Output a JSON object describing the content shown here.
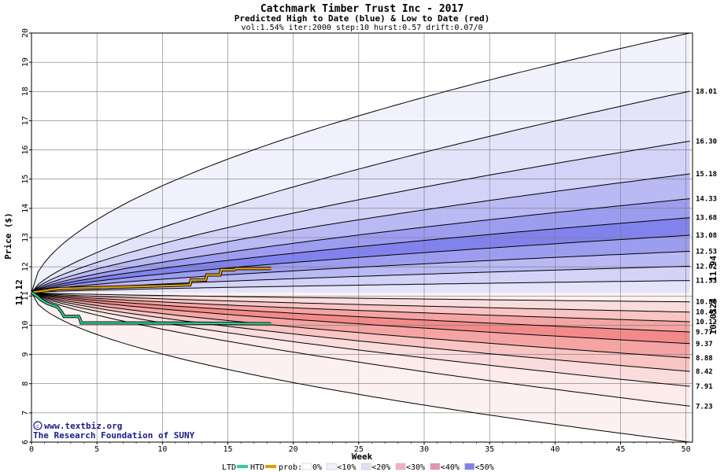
{
  "chart_data": {
    "type": "area",
    "title": "Catchmark Timber Trust Inc - 2017",
    "subtitle": "Predicted High to Date (blue) &  Low to Date (red)",
    "params": "vol:1.54% iter:2000 step:10 hurst:0.57 drift:0.07/0",
    "xlabel": "Week",
    "ylabel": "Price ($)",
    "xlim": [
      0,
      50.5
    ],
    "ylim": [
      6,
      20
    ],
    "x_ticks": [
      0,
      5,
      10,
      15,
      20,
      25,
      30,
      35,
      40,
      45,
      50
    ],
    "y_ticks": [
      6,
      7,
      8,
      9,
      10,
      11,
      12,
      13,
      14,
      15,
      16,
      17,
      18,
      19,
      20
    ],
    "grid": true,
    "start_price": 11.12,
    "start_label": "11.12",
    "high_bands": [
      {
        "end": 20.0,
        "shape": 0.55,
        "fill": "#f1f1fd"
      },
      {
        "end": 18.01,
        "shape": 0.7,
        "label": "18.01",
        "fill": "#e3e3fa"
      },
      {
        "end": 16.3,
        "shape": 0.7,
        "label": "16.30",
        "fill": "#d3d3f8"
      },
      {
        "end": 15.18,
        "shape": 0.7,
        "label": "15.18",
        "fill": "#b9b9f4"
      },
      {
        "end": 14.33,
        "shape": 0.7,
        "label": "14.33",
        "fill": "#9d9df0"
      },
      {
        "end": 13.68,
        "shape": 0.7,
        "label": "13.68",
        "fill": "#8282ec"
      },
      {
        "end": 13.08,
        "shape": 0.7,
        "label": "13.08",
        "fill": "#9d9df0"
      },
      {
        "end": 12.53,
        "shape": 0.7,
        "label": "12.53",
        "fill": "#b9b9f4"
      },
      {
        "end": 12.02,
        "shape": 0.7,
        "label": "12.02",
        "fill": "#d3d3f8"
      },
      {
        "end": 11.53,
        "shape": 0.7,
        "label": "11.53",
        "fill": "#e3e3fa"
      },
      {
        "end": 11.12,
        "shape": 0.7,
        "fill": "#f1f1fd"
      }
    ],
    "low_bands": [
      {
        "end": 11.12,
        "shape": 0.7,
        "fill": "#fdf0f0"
      },
      {
        "end": 10.8,
        "shape": 0.7,
        "label": "10.80",
        "fill": "#fbdcdc"
      },
      {
        "end": 10.45,
        "shape": 0.7,
        "label": "10.45",
        "fill": "#f9c4c4"
      },
      {
        "end": 10.12,
        "shape": 0.7,
        "label": "10.12",
        "fill": "#f5a4a4"
      },
      {
        "end": 9.77,
        "shape": 0.7,
        "label": "9.77",
        "fill": "#f38a8a"
      },
      {
        "end": 9.37,
        "shape": 0.7,
        "label": "9.37",
        "fill": "#f5a4a4"
      },
      {
        "end": 8.88,
        "shape": 0.7,
        "label": "8.88",
        "fill": "#f9c4c4"
      },
      {
        "end": 8.42,
        "shape": 0.7,
        "label": "8.42",
        "fill": "#fbdcdc"
      },
      {
        "end": 7.91,
        "shape": 0.7,
        "label": "7.91",
        "fill": "#fdeaea"
      },
      {
        "end": 7.23,
        "shape": 0.7,
        "label": "7.23",
        "fill": "#fdf0f0"
      },
      {
        "end": 6.0,
        "shape": 0.55,
        "fill": "#ffffff"
      }
    ],
    "htd_series": {
      "color": "#e0a000",
      "label": "11.94",
      "points": [
        [
          0,
          11.12
        ],
        [
          2,
          11.25
        ],
        [
          6,
          11.3
        ],
        [
          10,
          11.35
        ],
        [
          12.1,
          11.38
        ],
        [
          12.2,
          11.55
        ],
        [
          13.3,
          11.55
        ],
        [
          13.4,
          11.72
        ],
        [
          14.4,
          11.72
        ],
        [
          14.5,
          11.9
        ],
        [
          15.5,
          11.9
        ],
        [
          15.6,
          11.94
        ],
        [
          18.3,
          11.94
        ]
      ]
    },
    "ltd_series": {
      "color": "#30d090",
      "label": "10.0524",
      "points": [
        [
          0,
          11.12
        ],
        [
          0.4,
          11.0
        ],
        [
          0.8,
          10.85
        ],
        [
          1.2,
          10.75
        ],
        [
          2.0,
          10.62
        ],
        [
          2.3,
          10.45
        ],
        [
          2.5,
          10.3
        ],
        [
          3.6,
          10.3
        ],
        [
          3.7,
          10.22
        ],
        [
          3.8,
          10.08
        ],
        [
          6.0,
          10.08
        ],
        [
          12.0,
          10.07
        ],
        [
          18.3,
          10.05
        ]
      ]
    }
  },
  "credit": {
    "url": "www.textbiz.org",
    "org": "The Research Foundation of SUNY"
  },
  "legend": {
    "ltd": "LTD",
    "htd": "HTD",
    "ltd_color": "#30d090",
    "htd_color": "#e0a000",
    "prob_label": "prob:",
    "items": [
      {
        "label": "0%",
        "fill": "#ffffff"
      },
      {
        "label": "<10%",
        "fill": "#f1f1fd"
      },
      {
        "label": "<20%",
        "fill": "#e0e0f8"
      },
      {
        "label": "<30%",
        "fill": "#f0b0c8"
      },
      {
        "label": "<40%",
        "fill": "#e890b0"
      },
      {
        "label": "<50%",
        "fill": "#8080ec"
      }
    ]
  }
}
